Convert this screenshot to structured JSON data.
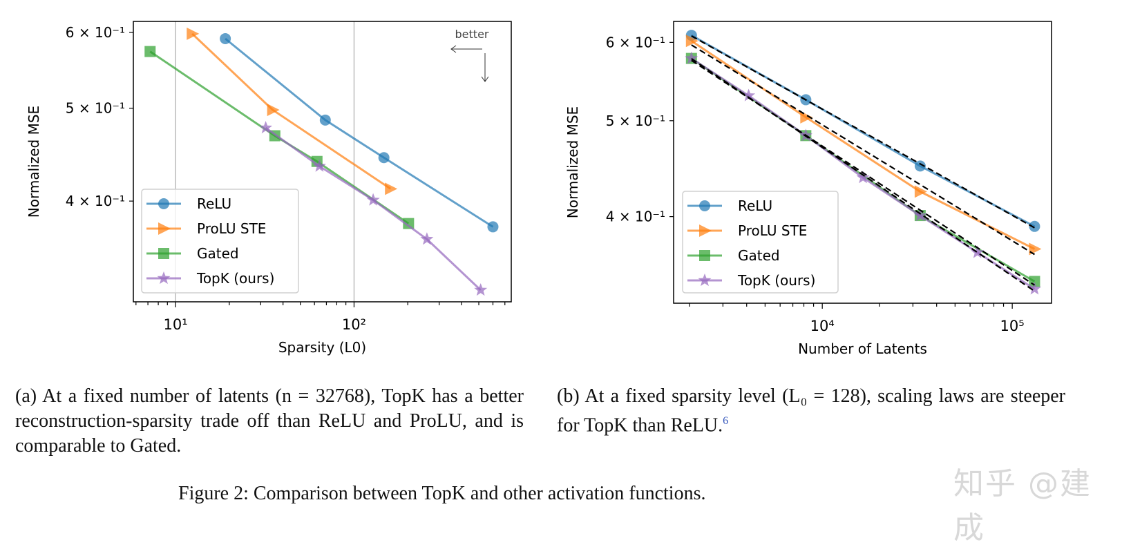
{
  "chart_data": [
    {
      "type": "line",
      "panel": "a",
      "xlabel": "Sparsity (L0)",
      "ylabel": "Normalized MSE",
      "xscale": "log",
      "yscale": "log",
      "xlim": [
        5.8,
        760
      ],
      "ylim": [
        0.314,
        0.616
      ],
      "xticks": [
        {
          "value": 10,
          "label": "10¹"
        },
        {
          "value": 100,
          "label": "10²"
        }
      ],
      "yticks": [
        {
          "value": 0.6,
          "label": "6 × 10⁻¹"
        },
        {
          "value": 0.5,
          "label": "5 × 10⁻¹"
        },
        {
          "value": 0.4,
          "label": "4 × 10⁻¹"
        }
      ],
      "grid": "vertical lines at major x ticks",
      "legend": "lower-left",
      "annotation": "better",
      "series": [
        {
          "name": "ReLU",
          "color": "#1f77b4",
          "marker": "circle",
          "x": [
            19,
            69,
            147,
            600
          ],
          "y": [
            0.591,
            0.486,
            0.444,
            0.376
          ]
        },
        {
          "name": "ProLU STE",
          "color": "#ff7f0e",
          "marker": "triangle-right",
          "x": [
            12.4,
            35,
            160
          ],
          "y": [
            0.598,
            0.498,
            0.412
          ]
        },
        {
          "name": "Gated",
          "color": "#2ca02c",
          "marker": "square",
          "x": [
            7.2,
            36,
            62,
            202
          ],
          "y": [
            0.573,
            0.468,
            0.44,
            0.379
          ]
        },
        {
          "name": "TopK (ours)",
          "color": "#9467bd",
          "marker": "star",
          "x": [
            32,
            64,
            128,
            256,
            512
          ],
          "y": [
            0.477,
            0.435,
            0.401,
            0.365,
            0.323
          ]
        }
      ]
    },
    {
      "type": "line",
      "panel": "b",
      "xlabel": "Number of Latents",
      "ylabel": "Normalized MSE",
      "xscale": "log",
      "yscale": "log",
      "xlim": [
        1650,
        161000
      ],
      "ylim": [
        0.327,
        0.63
      ],
      "xticks": [
        {
          "value": 10000,
          "label": "10⁴"
        },
        {
          "value": 100000,
          "label": "10⁵"
        }
      ],
      "yticks": [
        {
          "value": 0.6,
          "label": "6 × 10⁻¹"
        },
        {
          "value": 0.5,
          "label": "5 × 10⁻¹"
        },
        {
          "value": 0.4,
          "label": "4 × 10⁻¹"
        }
      ],
      "grid": false,
      "legend": "lower-left",
      "fit_lines": "black dashed power-law fits per series",
      "series": [
        {
          "name": "ReLU",
          "color": "#1f77b4",
          "marker": "circle",
          "x": [
            2048,
            8192,
            32768,
            131072
          ],
          "y": [
            0.61,
            0.525,
            0.45,
            0.391
          ]
        },
        {
          "name": "ProLU STE",
          "color": "#ff7f0e",
          "marker": "triangle-right",
          "x": [
            2048,
            8192,
            32768,
            131072
          ],
          "y": [
            0.602,
            0.504,
            0.424,
            0.371
          ]
        },
        {
          "name": "Gated",
          "color": "#2ca02c",
          "marker": "square",
          "x": [
            2048,
            8192,
            32768,
            131072
          ],
          "y": [
            0.578,
            0.483,
            0.401,
            0.344
          ]
        },
        {
          "name": "TopK (ours)",
          "color": "#9467bd",
          "marker": "star",
          "x": [
            2048,
            4096,
            8192,
            16384,
            32768,
            65536,
            131072
          ],
          "y": [
            0.578,
            0.53,
            0.483,
            0.438,
            0.401,
            0.368,
            0.338
          ]
        }
      ]
    }
  ],
  "captions": {
    "a": "(a) At a fixed number of latents (n = 32768), TopK has a better reconstruction-sparsity trade off than ReLU and ProLU, and is comparable to Gated.",
    "b": "(b) At a fixed sparsity level (L₀ = 128), scaling laws are steeper for TopK than ReLU.",
    "b_footnote": "6",
    "figure": "Figure 2: Comparison between TopK and other activation functions."
  },
  "watermark": "知乎 @建成"
}
